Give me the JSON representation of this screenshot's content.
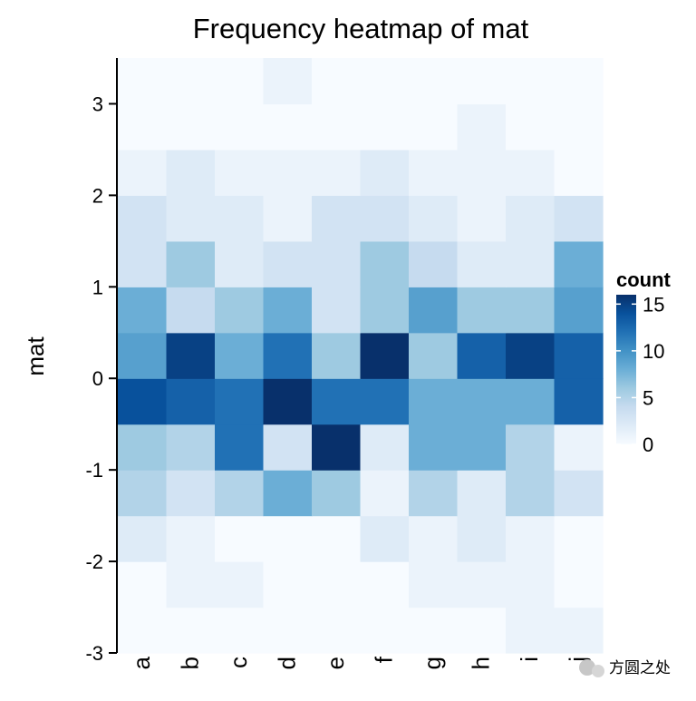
{
  "chart_data": {
    "type": "heatmap",
    "title": "Frequency heatmap of mat",
    "xlabel": "",
    "ylabel": "mat",
    "x_categories": [
      "a",
      "b",
      "c",
      "d",
      "e",
      "f",
      "g",
      "h",
      "i",
      "j"
    ],
    "y_bins": [
      -3,
      -2.5,
      -2,
      -1.5,
      -1,
      -0.5,
      0,
      0.5,
      1,
      1.5,
      2,
      2.5,
      3,
      3.5
    ],
    "y_ticks": [
      -3,
      -2,
      -1,
      0,
      1,
      2,
      3
    ],
    "ylim": [
      -3,
      3.5
    ],
    "legend": {
      "title": "count",
      "range": [
        0,
        16
      ],
      "ticks": [
        0,
        5,
        10,
        15
      ],
      "placement": "right",
      "color_low": "#f7fbff",
      "color_high": "#08306b"
    },
    "counts": [
      [
        0,
        0,
        0,
        0,
        0,
        0,
        0,
        0,
        1,
        1
      ],
      [
        0,
        1,
        1,
        0,
        0,
        0,
        1,
        1,
        1,
        0
      ],
      [
        2,
        1,
        0,
        0,
        0,
        2,
        1,
        2,
        1,
        0
      ],
      [
        5,
        3,
        5,
        8,
        6,
        1,
        5,
        2,
        5,
        3
      ],
      [
        6,
        5,
        12,
        3,
        16,
        2,
        8,
        8,
        5,
        1
      ],
      [
        14,
        13,
        12,
        16,
        12,
        12,
        8,
        8,
        8,
        13
      ],
      [
        9,
        15,
        8,
        12,
        6,
        16,
        6,
        13,
        15,
        13
      ],
      [
        8,
        4,
        6,
        8,
        3,
        6,
        9,
        6,
        6,
        9
      ],
      [
        3,
        6,
        2,
        3,
        3,
        6,
        4,
        2,
        2,
        8
      ],
      [
        3,
        2,
        2,
        1,
        3,
        3,
        2,
        1,
        2,
        3
      ],
      [
        1,
        2,
        1,
        1,
        1,
        2,
        1,
        1,
        1,
        0
      ],
      [
        0,
        0,
        0,
        0,
        0,
        0,
        0,
        1,
        0,
        0
      ],
      [
        0,
        0,
        0,
        1,
        0,
        0,
        0,
        0,
        0,
        0
      ]
    ]
  },
  "watermark": {
    "text": "方圆之处"
  }
}
